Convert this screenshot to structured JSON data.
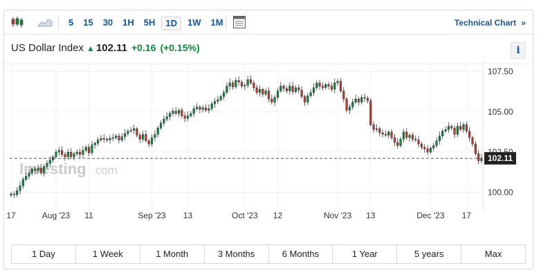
{
  "toolbar": {
    "candle_icon": "candlestick-icon",
    "area_icon": "area-chart-icon",
    "intervals": [
      "5",
      "15",
      "30",
      "1H",
      "5H",
      "1D",
      "1W",
      "1M"
    ],
    "active_interval": "1D",
    "layout_icon": "layout-icon",
    "technical_chart_label": "Technical Chart",
    "technical_chart_arrow": "»"
  },
  "header": {
    "title": "US Dollar Index",
    "price": "102.11",
    "change": "+0.16",
    "change_pct": "(+0.15%)",
    "info_label": "i"
  },
  "colors": {
    "up": "#0a8a3b",
    "down": "#c0392b",
    "accent": "#1256a0"
  },
  "watermark": {
    "brand": "Investing",
    "suffix": ".com"
  },
  "ranges": [
    "1 Day",
    "1 Week",
    "1 Month",
    "3 Months",
    "6 Months",
    "1 Year",
    "5 years",
    "Max"
  ],
  "chart_data": {
    "type": "candlestick",
    "title": "",
    "ylim": [
      99.2,
      108.0
    ],
    "y_ticks": [
      "100.00",
      "102.50",
      "105.00",
      "107.50"
    ],
    "y_tick_values": [
      100.0,
      102.5,
      105.0,
      107.5
    ],
    "x_tick_labels": [
      "17",
      "Aug '23",
      "11",
      "Sep '23",
      "13",
      "Oct '23",
      "12",
      "Nov '23",
      "13",
      "Dec '23",
      "17"
    ],
    "x_tick_index": [
      0,
      15,
      26,
      47,
      59,
      78,
      89,
      109,
      120,
      140,
      152
    ],
    "last_price": 102.11,
    "last_price_label": "102.11",
    "close_series": [
      99.9,
      99.85,
      100.1,
      100.4,
      100.8,
      101.0,
      101.2,
      101.45,
      101.35,
      101.5,
      101.2,
      101.6,
      101.8,
      102.0,
      102.2,
      102.5,
      102.6,
      102.35,
      102.2,
      102.5,
      102.2,
      102.4,
      102.5,
      102.35,
      102.6,
      102.8,
      102.45,
      102.95,
      103.05,
      103.25,
      103.35,
      103.3,
      103.25,
      103.35,
      103.4,
      103.5,
      103.25,
      103.45,
      103.65,
      103.8,
      103.85,
      103.95,
      103.55,
      103.3,
      103.6,
      103.2,
      103.0,
      103.4,
      103.6,
      104.0,
      104.3,
      104.55,
      104.7,
      104.9,
      105.05,
      104.9,
      105.1,
      104.75,
      104.6,
      104.75,
      104.9,
      105.2,
      105.3,
      105.15,
      105.25,
      105.1,
      105.2,
      105.5,
      105.65,
      105.75,
      105.95,
      106.2,
      106.6,
      106.8,
      106.55,
      106.95,
      106.85,
      106.6,
      106.65,
      107.0,
      106.8,
      106.5,
      106.2,
      106.4,
      106.1,
      106.3,
      105.8,
      105.6,
      105.9,
      106.3,
      106.6,
      106.45,
      106.3,
      106.6,
      106.25,
      106.5,
      106.35,
      105.95,
      105.6,
      106.0,
      106.2,
      106.5,
      106.8,
      106.6,
      106.5,
      106.7,
      106.6,
      106.4,
      106.8,
      106.9,
      106.3,
      105.8,
      105.1,
      105.3,
      105.6,
      105.8,
      105.6,
      105.9,
      105.85,
      105.7,
      104.2,
      103.9,
      103.95,
      103.7,
      103.6,
      103.55,
      103.75,
      103.4,
      103.1,
      102.9,
      103.3,
      103.75,
      103.4,
      103.55,
      103.3,
      103.25,
      103.0,
      102.8,
      102.7,
      102.5,
      102.75,
      102.9,
      103.2,
      103.5,
      103.8,
      103.9,
      104.1,
      104.0,
      103.6,
      104.1,
      103.9,
      104.2,
      103.8,
      103.4,
      103.0,
      102.4,
      101.95,
      102.11
    ]
  }
}
